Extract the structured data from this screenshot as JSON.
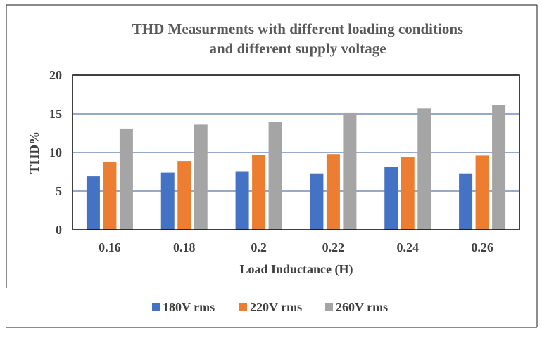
{
  "chart_data": {
    "type": "bar",
    "title": "THD Measurments with different loading conditions",
    "title_line2": "and different supply voltage",
    "xlabel": "Load Inductance (H)",
    "ylabel": "THD%",
    "ylim": [
      0,
      20
    ],
    "yticks": [
      "0",
      "5",
      "10",
      "15",
      "20"
    ],
    "categories": [
      "0.16",
      "0.18",
      "0.2",
      "0.22",
      "0.24",
      "0.26"
    ],
    "series": [
      {
        "name": "180V rms",
        "color": "#4472C4",
        "values": [
          6.9,
          7.4,
          7.5,
          7.3,
          8.1,
          7.3
        ]
      },
      {
        "name": "220V rms",
        "color": "#ED7D31",
        "values": [
          8.8,
          8.9,
          9.7,
          9.8,
          9.4,
          9.6
        ]
      },
      {
        "name": "260V rms",
        "color": "#A5A5A5",
        "values": [
          13.1,
          13.6,
          14.0,
          15.1,
          15.7,
          16.1
        ]
      }
    ],
    "grid": "horizontal",
    "gridline_color": "#2F5597",
    "legend_position": "bottom"
  }
}
